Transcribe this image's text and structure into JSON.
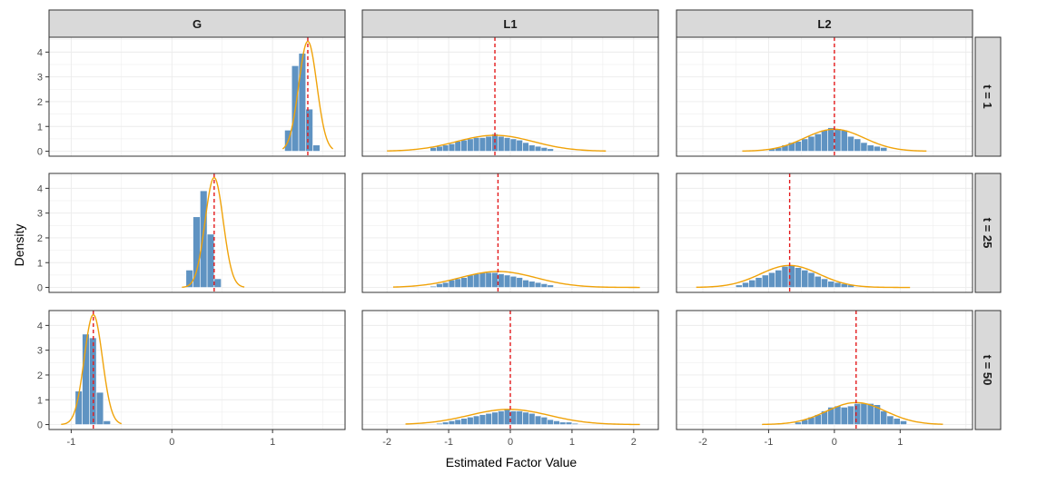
{
  "chart_data": {
    "type": "histogram-facet",
    "xlabel": "Estimated Factor Value",
    "ylabel": "Density",
    "columns": [
      "G",
      "L1",
      "L2"
    ],
    "rows": [
      "t = 1",
      "t = 25",
      "t = 50"
    ],
    "y_ticks": [
      0,
      1,
      2,
      3,
      4
    ],
    "ylim": [
      -0.2,
      4.6
    ],
    "colors": {
      "bar": "#5f93c2",
      "density_curve": "#f0a30a",
      "true_value_line": "#e41a1c",
      "strip_bg": "#d9d9d9",
      "grid": "#ebebeb"
    },
    "panels": [
      {
        "column": "G",
        "row": "t = 1",
        "xlim": [
          -1.22,
          1.72
        ],
        "x_ticks": [
          -1,
          0,
          1
        ],
        "bins": [
          [
            1.12,
            1.19,
            0.85
          ],
          [
            1.19,
            1.26,
            3.45
          ],
          [
            1.26,
            1.33,
            3.95
          ],
          [
            1.33,
            1.4,
            1.7
          ],
          [
            1.4,
            1.47,
            0.25
          ]
        ],
        "curve": {
          "mean": 1.35,
          "sd": 0.09,
          "from": 1.1,
          "to": 1.6
        },
        "true_value": 1.35
      },
      {
        "column": "L1",
        "row": "t = 1",
        "xlim": [
          -2.4,
          2.4
        ],
        "x_ticks": [
          -2,
          -1,
          0,
          1,
          2
        ],
        "bins": [
          [
            -1.3,
            -1.2,
            0.15
          ],
          [
            -1.2,
            -1.1,
            0.2
          ],
          [
            -1.1,
            -1.0,
            0.25
          ],
          [
            -1.0,
            -0.9,
            0.3
          ],
          [
            -0.9,
            -0.8,
            0.4
          ],
          [
            -0.8,
            -0.7,
            0.45
          ],
          [
            -0.7,
            -0.6,
            0.5
          ],
          [
            -0.6,
            -0.5,
            0.55
          ],
          [
            -0.5,
            -0.4,
            0.55
          ],
          [
            -0.4,
            -0.3,
            0.6
          ],
          [
            -0.3,
            -0.2,
            0.7
          ],
          [
            -0.2,
            -0.1,
            0.6
          ],
          [
            -0.1,
            0.0,
            0.55
          ],
          [
            0.0,
            0.1,
            0.5
          ],
          [
            0.1,
            0.2,
            0.45
          ],
          [
            0.2,
            0.3,
            0.35
          ],
          [
            0.3,
            0.4,
            0.25
          ],
          [
            0.4,
            0.5,
            0.2
          ],
          [
            0.5,
            0.6,
            0.15
          ],
          [
            0.6,
            0.7,
            0.1
          ]
        ],
        "curve": {
          "mean": -0.25,
          "sd": 0.62,
          "from": -2.0,
          "to": 1.55
        },
        "true_value": -0.25
      },
      {
        "column": "L2",
        "row": "t = 1",
        "xlim": [
          -2.4,
          2.1
        ],
        "x_ticks": [
          -2,
          -1,
          0,
          1
        ],
        "bins": [
          [
            -1.0,
            -0.9,
            0.1
          ],
          [
            -0.9,
            -0.8,
            0.15
          ],
          [
            -0.8,
            -0.7,
            0.25
          ],
          [
            -0.7,
            -0.6,
            0.35
          ],
          [
            -0.6,
            -0.5,
            0.4
          ],
          [
            -0.5,
            -0.4,
            0.5
          ],
          [
            -0.4,
            -0.3,
            0.6
          ],
          [
            -0.3,
            -0.2,
            0.7
          ],
          [
            -0.2,
            -0.1,
            0.85
          ],
          [
            -0.1,
            0.0,
            0.95
          ],
          [
            0.0,
            0.1,
            0.9
          ],
          [
            0.1,
            0.2,
            0.85
          ],
          [
            0.2,
            0.3,
            0.6
          ],
          [
            0.3,
            0.4,
            0.5
          ],
          [
            0.4,
            0.5,
            0.35
          ],
          [
            0.5,
            0.6,
            0.25
          ],
          [
            0.6,
            0.7,
            0.2
          ],
          [
            0.7,
            0.8,
            0.15
          ]
        ],
        "curve": {
          "mean": 0.0,
          "sd": 0.45,
          "from": -1.4,
          "to": 1.4
        },
        "true_value": 0.0
      },
      {
        "column": "G",
        "row": "t = 25",
        "xlim": [
          -1.22,
          1.72
        ],
        "x_ticks": [
          -1,
          0,
          1
        ],
        "bins": [
          [
            0.14,
            0.21,
            0.7
          ],
          [
            0.21,
            0.28,
            2.85
          ],
          [
            0.28,
            0.35,
            3.9
          ],
          [
            0.35,
            0.42,
            2.15
          ],
          [
            0.42,
            0.49,
            0.35
          ]
        ],
        "curve": {
          "mean": 0.42,
          "sd": 0.09,
          "from": 0.1,
          "to": 0.72
        },
        "true_value": 0.42
      },
      {
        "column": "L1",
        "row": "t = 25",
        "xlim": [
          -2.4,
          2.4
        ],
        "x_ticks": [
          -2,
          -1,
          0,
          1,
          2
        ],
        "bins": [
          [
            -1.3,
            -1.2,
            0.05
          ],
          [
            -1.2,
            -1.1,
            0.15
          ],
          [
            -1.1,
            -1.0,
            0.2
          ],
          [
            -1.0,
            -0.9,
            0.3
          ],
          [
            -0.9,
            -0.8,
            0.35
          ],
          [
            -0.8,
            -0.7,
            0.4
          ],
          [
            -0.7,
            -0.6,
            0.5
          ],
          [
            -0.6,
            -0.5,
            0.55
          ],
          [
            -0.5,
            -0.4,
            0.6
          ],
          [
            -0.4,
            -0.3,
            0.6
          ],
          [
            -0.3,
            -0.2,
            0.6
          ],
          [
            -0.2,
            -0.1,
            0.55
          ],
          [
            -0.1,
            0.0,
            0.5
          ],
          [
            0.0,
            0.1,
            0.45
          ],
          [
            0.1,
            0.2,
            0.4
          ],
          [
            0.2,
            0.3,
            0.3
          ],
          [
            0.3,
            0.4,
            0.25
          ],
          [
            0.4,
            0.5,
            0.2
          ],
          [
            0.5,
            0.6,
            0.15
          ],
          [
            0.6,
            0.7,
            0.1
          ]
        ],
        "curve": {
          "mean": -0.2,
          "sd": 0.62,
          "from": -1.9,
          "to": 2.1
        },
        "true_value": -0.2
      },
      {
        "column": "L2",
        "row": "t = 25",
        "xlim": [
          -2.4,
          2.1
        ],
        "x_ticks": [
          -2,
          -1,
          0,
          1
        ],
        "bins": [
          [
            -1.5,
            -1.4,
            0.1
          ],
          [
            -1.4,
            -1.3,
            0.2
          ],
          [
            -1.3,
            -1.2,
            0.3
          ],
          [
            -1.2,
            -1.1,
            0.4
          ],
          [
            -1.1,
            -1.0,
            0.5
          ],
          [
            -1.0,
            -0.9,
            0.6
          ],
          [
            -0.9,
            -0.8,
            0.7
          ],
          [
            -0.8,
            -0.7,
            0.85
          ],
          [
            -0.7,
            -0.6,
            0.9
          ],
          [
            -0.6,
            -0.5,
            0.8
          ],
          [
            -0.5,
            -0.4,
            0.7
          ],
          [
            -0.4,
            -0.3,
            0.6
          ],
          [
            -0.3,
            -0.2,
            0.45
          ],
          [
            -0.2,
            -0.1,
            0.35
          ],
          [
            -0.1,
            0.0,
            0.25
          ],
          [
            0.0,
            0.1,
            0.2
          ],
          [
            0.1,
            0.2,
            0.15
          ],
          [
            0.2,
            0.3,
            0.1
          ]
        ],
        "curve": {
          "mean": -0.68,
          "sd": 0.45,
          "from": -2.1,
          "to": 1.15
        },
        "true_value": -0.68
      },
      {
        "column": "G",
        "row": "t = 50",
        "xlim": [
          -1.22,
          1.72
        ],
        "x_ticks": [
          -1,
          0,
          1
        ],
        "bins": [
          [
            -0.96,
            -0.89,
            1.35
          ],
          [
            -0.89,
            -0.82,
            3.65
          ],
          [
            -0.82,
            -0.75,
            3.5
          ],
          [
            -0.75,
            -0.68,
            1.3
          ],
          [
            -0.68,
            -0.61,
            0.15
          ]
        ],
        "curve": {
          "mean": -0.78,
          "sd": 0.09,
          "from": -1.1,
          "to": -0.5
        },
        "true_value": -0.78
      },
      {
        "column": "L1",
        "row": "t = 50",
        "xlim": [
          -2.4,
          2.4
        ],
        "x_ticks": [
          -2,
          -1,
          0,
          1,
          2
        ],
        "bins": [
          [
            -1.2,
            -1.1,
            0.05
          ],
          [
            -1.1,
            -1.0,
            0.1
          ],
          [
            -1.0,
            -0.9,
            0.15
          ],
          [
            -0.9,
            -0.8,
            0.2
          ],
          [
            -0.8,
            -0.7,
            0.25
          ],
          [
            -0.7,
            -0.6,
            0.3
          ],
          [
            -0.6,
            -0.5,
            0.35
          ],
          [
            -0.5,
            -0.4,
            0.4
          ],
          [
            -0.4,
            -0.3,
            0.45
          ],
          [
            -0.3,
            -0.2,
            0.5
          ],
          [
            -0.2,
            -0.1,
            0.55
          ],
          [
            -0.1,
            0.0,
            0.6
          ],
          [
            0.0,
            0.1,
            0.55
          ],
          [
            0.1,
            0.2,
            0.55
          ],
          [
            0.2,
            0.3,
            0.5
          ],
          [
            0.3,
            0.4,
            0.45
          ],
          [
            0.4,
            0.5,
            0.35
          ],
          [
            0.5,
            0.6,
            0.3
          ],
          [
            0.6,
            0.7,
            0.2
          ],
          [
            0.7,
            0.8,
            0.15
          ],
          [
            0.8,
            0.9,
            0.1
          ],
          [
            0.9,
            1.0,
            0.1
          ],
          [
            1.0,
            1.1,
            0.05
          ]
        ],
        "curve": {
          "mean": -0.02,
          "sd": 0.65,
          "from": -1.7,
          "to": 2.1
        },
        "true_value": 0.0
      },
      {
        "column": "L2",
        "row": "t = 50",
        "xlim": [
          -2.4,
          2.1
        ],
        "x_ticks": [
          -2,
          -1,
          0,
          1
        ],
        "bins": [
          [
            -0.6,
            -0.5,
            0.1
          ],
          [
            -0.5,
            -0.4,
            0.2
          ],
          [
            -0.4,
            -0.3,
            0.3
          ],
          [
            -0.3,
            -0.2,
            0.4
          ],
          [
            -0.2,
            -0.1,
            0.55
          ],
          [
            -0.1,
            0.0,
            0.7
          ],
          [
            0.0,
            0.1,
            0.75
          ],
          [
            0.1,
            0.2,
            0.7
          ],
          [
            0.2,
            0.3,
            0.75
          ],
          [
            0.3,
            0.4,
            0.85
          ],
          [
            0.4,
            0.5,
            0.85
          ],
          [
            0.5,
            0.6,
            0.85
          ],
          [
            0.6,
            0.7,
            0.8
          ],
          [
            0.7,
            0.8,
            0.55
          ],
          [
            0.8,
            0.9,
            0.35
          ],
          [
            0.9,
            1.0,
            0.25
          ],
          [
            1.0,
            1.1,
            0.15
          ]
        ],
        "curve": {
          "mean": 0.33,
          "sd": 0.45,
          "from": -1.1,
          "to": 1.65
        },
        "true_value": 0.33
      }
    ]
  }
}
